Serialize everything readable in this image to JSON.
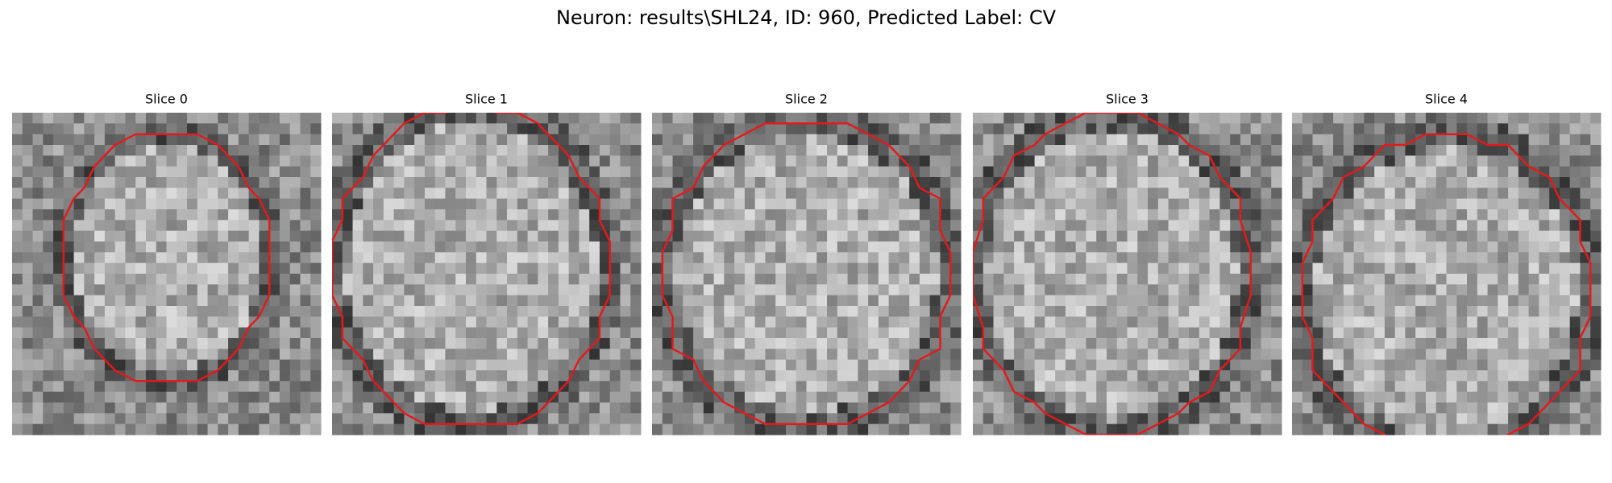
{
  "title": "Neuron: results\\SHL24, ID: 960, Predicted Label: CV",
  "panels": [
    {
      "title": "Slice 0"
    },
    {
      "title": "Slice 1"
    },
    {
      "title": "Slice 2"
    },
    {
      "title": "Slice 3"
    },
    {
      "title": "Slice 4"
    }
  ]
}
